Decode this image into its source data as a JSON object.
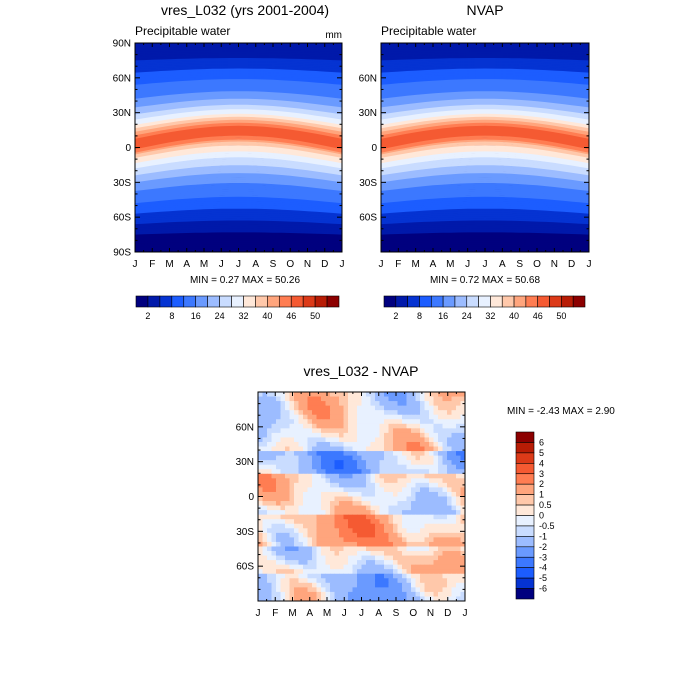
{
  "chart_data": [
    {
      "type": "heatmap",
      "title": "vres_L032 (yrs 2001-2004)",
      "subtitle": "Precipitable water",
      "units": "mm",
      "x": [
        "J",
        "F",
        "M",
        "A",
        "M",
        "J",
        "J",
        "A",
        "S",
        "O",
        "N",
        "D",
        "J"
      ],
      "y": [
        "90N",
        "60N",
        "30N",
        "0",
        "30S",
        "60S",
        "90S"
      ],
      "stats": "MIN =   0.27 MAX =  50.26",
      "colorbar": {
        "labels": [
          "2",
          "8",
          "16",
          "24",
          "32",
          "40",
          "46",
          "50"
        ],
        "colors": [
          "#00007f",
          "#0019aa",
          "#0533d2",
          "#1c5dff",
          "#3c78ff",
          "#6a9aff",
          "#9cbcff",
          "#c9dcff",
          "#e8f1ff",
          "#ffe8d9",
          "#ffc8aa",
          "#ffa57d",
          "#ff7d52",
          "#f55a32",
          "#dc3a18",
          "#b81c05",
          "#8c0000"
        ]
      },
      "zonal_profile": [
        {
          "lat": 90,
          "value": 2
        },
        {
          "lat": 75,
          "value": 5
        },
        {
          "lat": 60,
          "value": 9
        },
        {
          "lat": 45,
          "value": 14
        },
        {
          "lat": 30,
          "value": 22
        },
        {
          "lat": 15,
          "value": 36
        },
        {
          "lat": 5,
          "value": 46
        },
        {
          "lat": 0,
          "value": 44
        },
        {
          "lat": -15,
          "value": 30
        },
        {
          "lat": -30,
          "value": 20
        },
        {
          "lat": -45,
          "value": 12
        },
        {
          "lat": -60,
          "value": 7
        },
        {
          "lat": -75,
          "value": 2
        },
        {
          "lat": -90,
          "value": 1
        }
      ]
    },
    {
      "type": "heatmap",
      "title": "NVAP",
      "subtitle": "Precipitable water",
      "x": [
        "J",
        "F",
        "M",
        "A",
        "M",
        "J",
        "J",
        "A",
        "S",
        "O",
        "N",
        "D",
        "J"
      ],
      "y": [
        "60N",
        "30N",
        "0",
        "30S",
        "60S"
      ],
      "stats": "MIN =   0.72 MAX =  50.68",
      "colorbar": {
        "labels": [
          "2",
          "8",
          "16",
          "24",
          "32",
          "40",
          "46",
          "50"
        ],
        "colors": [
          "#00007f",
          "#0019aa",
          "#0533d2",
          "#1c5dff",
          "#3c78ff",
          "#6a9aff",
          "#9cbcff",
          "#c9dcff",
          "#e8f1ff",
          "#ffe8d9",
          "#ffc8aa",
          "#ffa57d",
          "#ff7d52",
          "#f55a32",
          "#dc3a18",
          "#b81c05",
          "#8c0000"
        ]
      }
    },
    {
      "type": "heatmap",
      "title": "vres_L032 - NVAP",
      "x": [
        "J",
        "F",
        "M",
        "A",
        "M",
        "J",
        "J",
        "A",
        "S",
        "O",
        "N",
        "D",
        "J"
      ],
      "y": [
        "60N",
        "30N",
        "0",
        "30S",
        "60S"
      ],
      "stats": "MIN =  -2.43 MAX =   2.90",
      "colorbar": {
        "labels": [
          "6",
          "5",
          "4",
          "3",
          "2",
          "1",
          "0.5",
          "0",
          "-0.5",
          "-1",
          "-2",
          "-3",
          "-4",
          "-5",
          "-6"
        ],
        "colors": [
          "#8c0000",
          "#b81c05",
          "#dc3a18",
          "#f55a32",
          "#ff7d52",
          "#ffa57d",
          "#ffc8aa",
          "#ffe8d9",
          "#e8f1ff",
          "#c9dcff",
          "#9cbcff",
          "#6a9aff",
          "#3c78ff",
          "#1c5dff",
          "#0533d2",
          "#00007f"
        ]
      }
    }
  ]
}
